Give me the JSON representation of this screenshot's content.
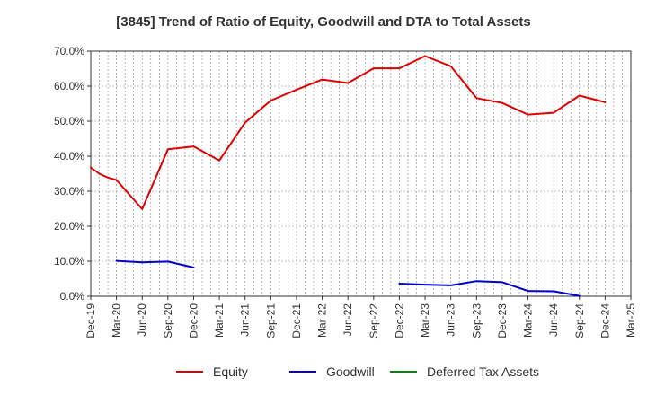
{
  "chart_data": {
    "type": "line",
    "title": "[3845]  Trend of Ratio of Equity, Goodwill and DTA to Total Assets",
    "xlabel": "",
    "ylabel": "",
    "ylim": [
      0,
      70
    ],
    "grid": true,
    "legend_position": "bottom",
    "y_ticks": [
      "0.0%",
      "10.0%",
      "20.0%",
      "30.0%",
      "40.0%",
      "50.0%",
      "60.0%",
      "70.0%"
    ],
    "x_ticks": [
      "Dec-19",
      "Mar-20",
      "Jun-20",
      "Sep-20",
      "Dec-20",
      "Mar-21",
      "Jun-21",
      "Sep-21",
      "Dec-21",
      "Mar-22",
      "Jun-22",
      "Sep-22",
      "Dec-22",
      "Mar-23",
      "Jun-23",
      "Sep-23",
      "Dec-23",
      "Mar-24",
      "Jun-24",
      "Sep-24",
      "Dec-24",
      "Mar-25"
    ],
    "series": [
      {
        "name": "Equity",
        "color": "#dd0000",
        "x": [
          "Dec-19",
          "Jan-20",
          "Feb-20",
          "Mar-20",
          "Jun-20",
          "Sep-20",
          "Dec-20",
          "Mar-21",
          "Jun-21",
          "Sep-21",
          "Dec-21",
          "Mar-22",
          "Jun-22",
          "Sep-22",
          "Dec-22",
          "Mar-23",
          "Jun-23",
          "Sep-23",
          "Dec-23",
          "Mar-24",
          "Jun-24",
          "Sep-24",
          "Dec-24"
        ],
        "values": [
          36.8,
          35.0,
          33.9,
          33.2,
          24.9,
          42.0,
          42.8,
          38.8,
          49.6,
          55.9,
          59.0,
          61.9,
          60.9,
          65.1,
          65.1,
          68.6,
          65.7,
          56.6,
          55.2,
          51.9,
          52.4,
          57.3,
          55.4
        ]
      },
      {
        "name": "Goodwill",
        "color": "#0000cc",
        "x": [
          "Mar-20",
          "Jun-20",
          "Sep-20",
          "Dec-20",
          null,
          "Dec-22",
          "Mar-23",
          "Jun-23",
          "Sep-23",
          "Dec-23",
          "Mar-24",
          "Jun-24",
          "Sep-24"
        ],
        "values": [
          10.1,
          9.7,
          9.9,
          8.2,
          null,
          3.6,
          3.3,
          3.1,
          4.3,
          4.0,
          1.5,
          1.4,
          0.1
        ]
      },
      {
        "name": "Deferred Tax Assets",
        "color": "#008800",
        "x": [],
        "values": []
      }
    ]
  }
}
